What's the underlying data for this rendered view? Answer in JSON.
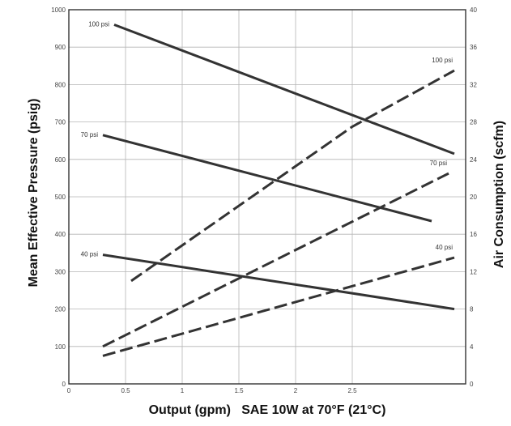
{
  "chart_data": {
    "type": "line",
    "title": "",
    "xlabel": "Output (gpm)   SAE 10W at 70°F (21°C)",
    "ylabel_left": "Mean Effective Pressure (psig)",
    "ylabel_right": "Air Consumption (scfm)",
    "xlim": [
      0,
      3.5
    ],
    "ylim_left": [
      0,
      1000
    ],
    "ylim_right": [
      0,
      40
    ],
    "x_ticks": [
      "0",
      "0.5",
      "1",
      "1.5",
      "2",
      "2.5"
    ],
    "x_tick_values": [
      0,
      0.5,
      1.0,
      1.5,
      2.0,
      2.5
    ],
    "y_left_ticks": [
      "0",
      "100",
      "200",
      "300",
      "400",
      "500",
      "600",
      "700",
      "800",
      "900",
      "1000"
    ],
    "y_left_tick_values": [
      0,
      100,
      200,
      300,
      400,
      500,
      600,
      700,
      800,
      900,
      1000
    ],
    "y_right_ticks": [
      "0",
      "4",
      "8",
      "12",
      "16",
      "20",
      "24",
      "28",
      "32",
      "36",
      "40"
    ],
    "y_right_tick_values": [
      0,
      4,
      8,
      12,
      16,
      20,
      24,
      28,
      32,
      36,
      40
    ],
    "grid": true,
    "legend": "none",
    "series": [
      {
        "name": "100 psi",
        "axis": "left",
        "style": "solid",
        "x": [
          0.4,
          3.4
        ],
        "y": [
          960,
          615
        ]
      },
      {
        "name": "70 psi",
        "axis": "left",
        "style": "solid",
        "x": [
          0.3,
          3.2
        ],
        "y": [
          665,
          435
        ]
      },
      {
        "name": "40 psi",
        "axis": "left",
        "style": "solid",
        "x": [
          0.3,
          3.4
        ],
        "y": [
          345,
          200
        ]
      },
      {
        "name": "100 psi",
        "axis": "right",
        "style": "dashed",
        "x": [
          0.55,
          2.5,
          3.4
        ],
        "y": [
          11,
          27.5,
          33.5
        ]
      },
      {
        "name": "70 psi",
        "axis": "right",
        "style": "dashed",
        "x": [
          0.3,
          3.35
        ],
        "y": [
          4,
          22.5
        ]
      },
      {
        "name": "40 psi",
        "axis": "right",
        "style": "dashed",
        "x": [
          0.3,
          3.4
        ],
        "y": [
          3,
          13.5
        ]
      }
    ]
  }
}
